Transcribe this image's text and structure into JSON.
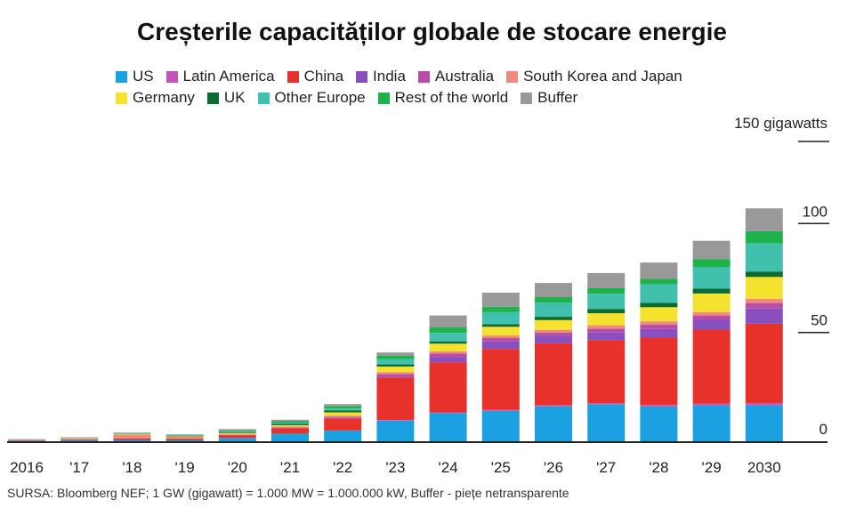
{
  "chart_data": {
    "type": "bar",
    "stacked": true,
    "title": "Creșterile capacităților globale de stocare energie",
    "categories": [
      "2016",
      "'17",
      "'18",
      "'19",
      "'20",
      "'21",
      "'22",
      "'23",
      "'24",
      "'25",
      "'26",
      "'27",
      "'28",
      "'29",
      "2030"
    ],
    "y_unit_label": "150 gigawatts",
    "y_ticks": [
      "0",
      "50",
      "100"
    ],
    "ylim": [
      0,
      150
    ],
    "legend_position": "top",
    "grid": false,
    "series": [
      {
        "name": "US",
        "color": "#1ba1e2",
        "values": [
          0.3,
          0.5,
          0.6,
          0.6,
          1.5,
          3.5,
          5.0,
          9.5,
          13.0,
          14.0,
          16.0,
          17.0,
          16.0,
          16.5,
          16.5
        ]
      },
      {
        "name": "Latin America",
        "color": "#c455b8",
        "values": [
          0,
          0,
          0,
          0,
          0,
          0,
          0,
          0.3,
          0.3,
          0.4,
          0.5,
          0.5,
          0.6,
          0.8,
          1.0
        ]
      },
      {
        "name": "China",
        "color": "#e8312a",
        "values": [
          0.2,
          0.3,
          0.7,
          0.6,
          1.2,
          2.5,
          5.5,
          19.5,
          23.0,
          28.0,
          28.5,
          29.0,
          31.0,
          34.0,
          36.5
        ]
      },
      {
        "name": "India",
        "color": "#8a4fbf",
        "values": [
          0,
          0,
          0,
          0,
          0,
          0,
          0.2,
          0.5,
          2.5,
          3.5,
          3.5,
          3.5,
          4.0,
          4.5,
          7.0
        ]
      },
      {
        "name": "Australia",
        "color": "#b94ca8",
        "values": [
          0,
          0,
          0.1,
          0.1,
          0.2,
          0.3,
          0.5,
          1.0,
          1.5,
          1.5,
          1.5,
          1.8,
          2.0,
          2.0,
          2.5
        ]
      },
      {
        "name": "South Korea and Japan",
        "color": "#f08a7a",
        "values": [
          0.3,
          0.5,
          1.7,
          0.8,
          0.5,
          0.5,
          0.6,
          1.0,
          1.0,
          1.2,
          1.2,
          1.5,
          1.5,
          1.6,
          2.0
        ]
      },
      {
        "name": "Germany",
        "color": "#f5e22e",
        "values": [
          0,
          0.1,
          0.2,
          0.2,
          0.4,
          0.6,
          1.5,
          2.5,
          3.5,
          4.0,
          4.5,
          5.5,
          6.5,
          8.5,
          10.0
        ]
      },
      {
        "name": "UK",
        "color": "#0d6b2f",
        "values": [
          0,
          0,
          0.1,
          0.2,
          0.4,
          0.6,
          0.8,
          1.0,
          1.0,
          1.2,
          1.5,
          2.0,
          2.0,
          2.2,
          2.5
        ]
      },
      {
        "name": "Other Europe",
        "color": "#42c0ae",
        "values": [
          0,
          0.1,
          0.2,
          0.2,
          0.4,
          0.6,
          1.0,
          2.5,
          4.0,
          5.5,
          6.5,
          7.0,
          8.5,
          10.0,
          13.0
        ]
      },
      {
        "name": "Rest of the world",
        "color": "#1db34a",
        "values": [
          0,
          0.1,
          0.2,
          0.2,
          0.4,
          0.6,
          1.0,
          1.5,
          2.5,
          2.5,
          2.5,
          2.5,
          2.5,
          3.5,
          5.5
        ]
      },
      {
        "name": "Buffer",
        "color": "#999999",
        "values": [
          0.2,
          0.3,
          0.2,
          0.3,
          0.6,
          0.7,
          1.0,
          1.5,
          5.5,
          6.5,
          6.5,
          7.0,
          7.5,
          8.5,
          10.5
        ]
      }
    ],
    "source": "SURSA: Bloomberg NEF; 1 GW (gigawatt) = 1.000 MW = 1.000.000 kW, Buffer - piețe netransparente"
  }
}
